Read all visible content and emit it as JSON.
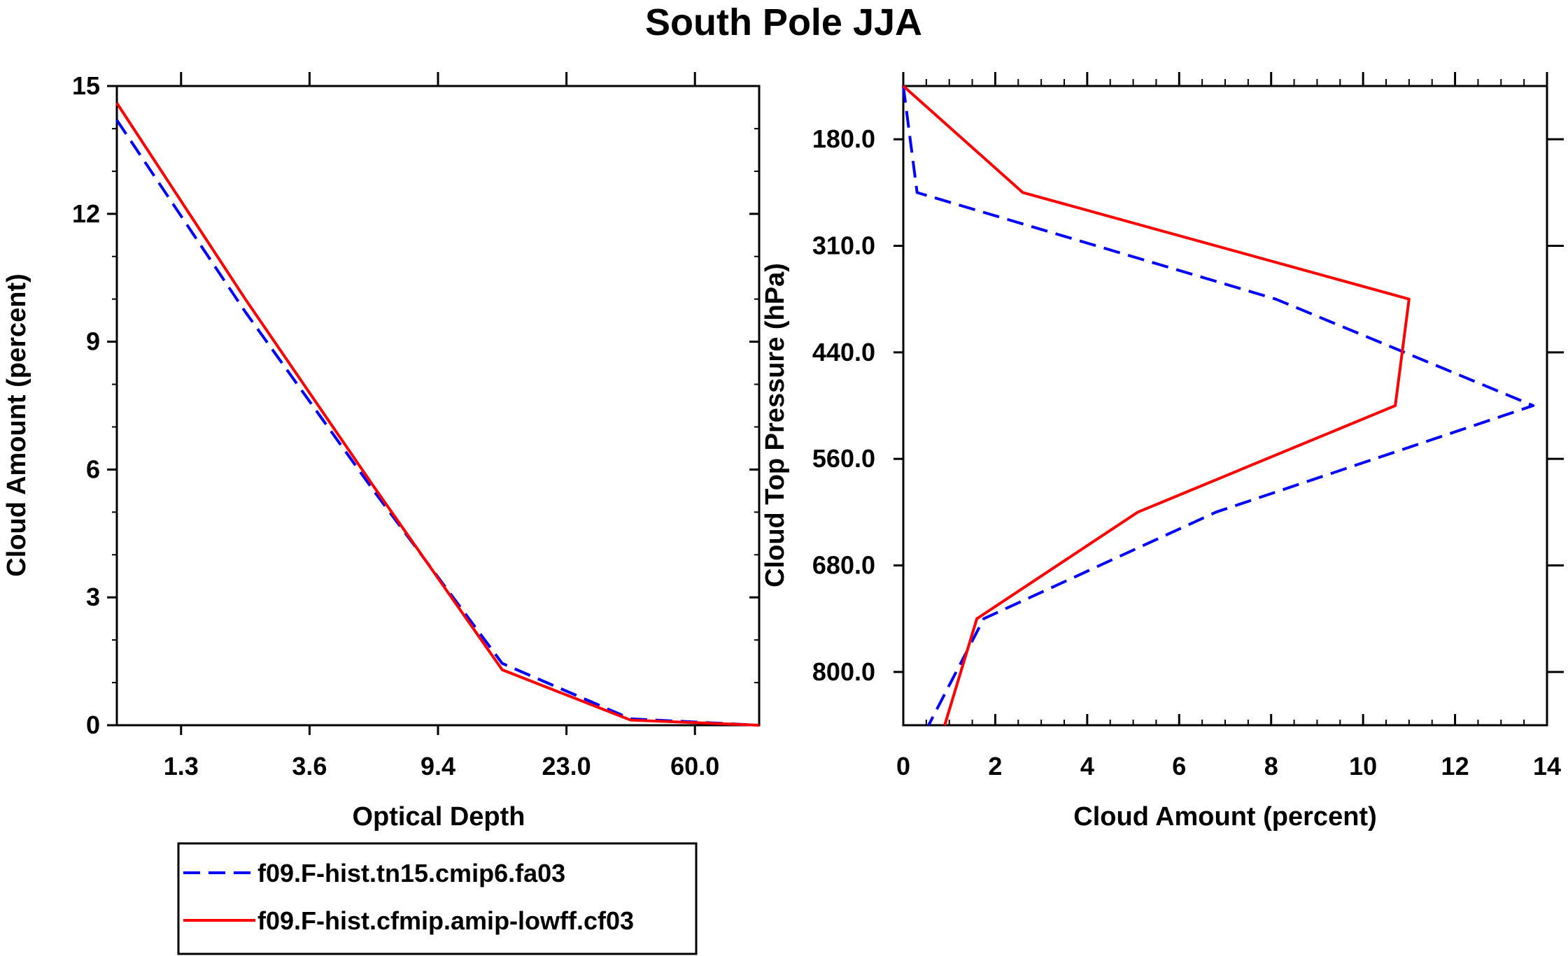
{
  "title": "South Pole JJA",
  "legend": [
    {
      "label": "f09.F-hist.tn15.cmip6.fa03",
      "color": "#0000ff",
      "dash": "dashed"
    },
    {
      "label": "f09.F-hist.cfmip.amip-lowff.cf03",
      "color": "#ff0000",
      "dash": "solid"
    }
  ],
  "chart_data": [
    {
      "type": "line",
      "title": "South Pole JJA",
      "xlabel": "Optical Depth",
      "ylabel": "Cloud Amount (percent)",
      "x_tick_labels": [
        "1.3",
        "3.6",
        "9.4",
        "23.0",
        "60.0"
      ],
      "x_bin_index": [
        0,
        1,
        2,
        3,
        4,
        5
      ],
      "y_ticks": [
        0,
        3,
        6,
        9,
        12,
        15
      ],
      "ylim": [
        0,
        15
      ],
      "series": [
        {
          "name": "f09.F-hist.tn15.cmip6.fa03",
          "values": [
            14.2,
            9.7,
            5.5,
            1.45,
            0.15,
            0.0
          ]
        },
        {
          "name": "f09.F-hist.cfmip.amip-lowff.cf03",
          "values": [
            14.6,
            10.0,
            5.6,
            1.3,
            0.12,
            0.0
          ]
        }
      ]
    },
    {
      "type": "line",
      "xlabel": "Cloud Amount (percent)",
      "ylabel": "Cloud Top Pressure (hPa)",
      "x_ticks": [
        0,
        2,
        4,
        6,
        8,
        10,
        12,
        14
      ],
      "xlim": [
        0,
        14
      ],
      "y_tick_labels": [
        "180.0",
        "310.0",
        "440.0",
        "560.0",
        "680.0",
        "800.0"
      ],
      "pressure_bin_index": [
        0,
        1,
        2,
        3,
        4,
        5,
        6
      ],
      "series": [
        {
          "name": "f09.F-hist.tn15.cmip6.fa03",
          "values": [
            0.0,
            0.3,
            8.1,
            13.7,
            6.8,
            1.75,
            0.55
          ]
        },
        {
          "name": "f09.F-hist.cfmip.amip-lowff.cf03",
          "values": [
            0.0,
            2.6,
            11.0,
            10.7,
            5.1,
            1.6,
            0.9
          ]
        }
      ]
    }
  ]
}
